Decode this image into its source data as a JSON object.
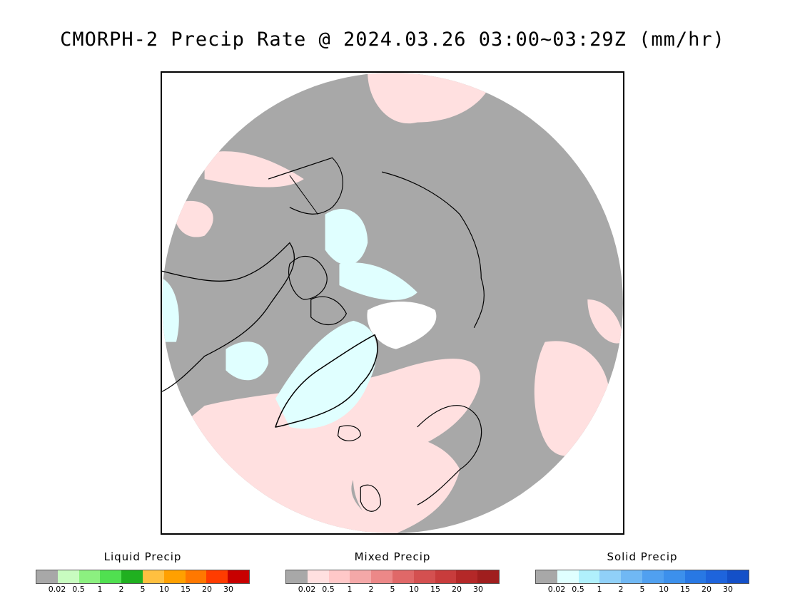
{
  "title": "CMORPH-2 Precip Rate @ 2024.03.26 03:00~03:29Z (mm/hr)",
  "map": {
    "colors": {
      "no_precip": "#a8a8a8",
      "mixed_light": "#ffe0e0",
      "solid_light": "#e0ffff",
      "no_data": "#ffffff",
      "coastline": "#000000"
    }
  },
  "legends": [
    {
      "title": "Liquid Precip",
      "colors": [
        "#a8a8a8",
        "#c8fcc0",
        "#8cf080",
        "#50e050",
        "#20b020",
        "#ffc040",
        "#ffa000",
        "#ff7800",
        "#ff3c00",
        "#c80000"
      ],
      "ticks": [
        "0.02",
        "0.5",
        "1",
        "2",
        "5",
        "10",
        "15",
        "20",
        "30"
      ]
    },
    {
      "title": "Mixed Precip",
      "colors": [
        "#a8a8a8",
        "#ffe0e0",
        "#ffc8c8",
        "#f4a8a8",
        "#ec8888",
        "#e06868",
        "#d45050",
        "#c83c3c",
        "#b42828",
        "#a01e1e"
      ],
      "ticks": [
        "0.02",
        "0.5",
        "1",
        "2",
        "5",
        "10",
        "15",
        "20",
        "30"
      ]
    },
    {
      "title": "Solid Precip",
      "colors": [
        "#a8a8a8",
        "#e0ffff",
        "#b0f0fc",
        "#90d0f8",
        "#70b8f4",
        "#50a0f0",
        "#3c90ec",
        "#2878e4",
        "#1e64dc",
        "#1450c8"
      ],
      "ticks": [
        "0.02",
        "0.5",
        "1",
        "2",
        "5",
        "10",
        "15",
        "20",
        "30"
      ]
    }
  ]
}
